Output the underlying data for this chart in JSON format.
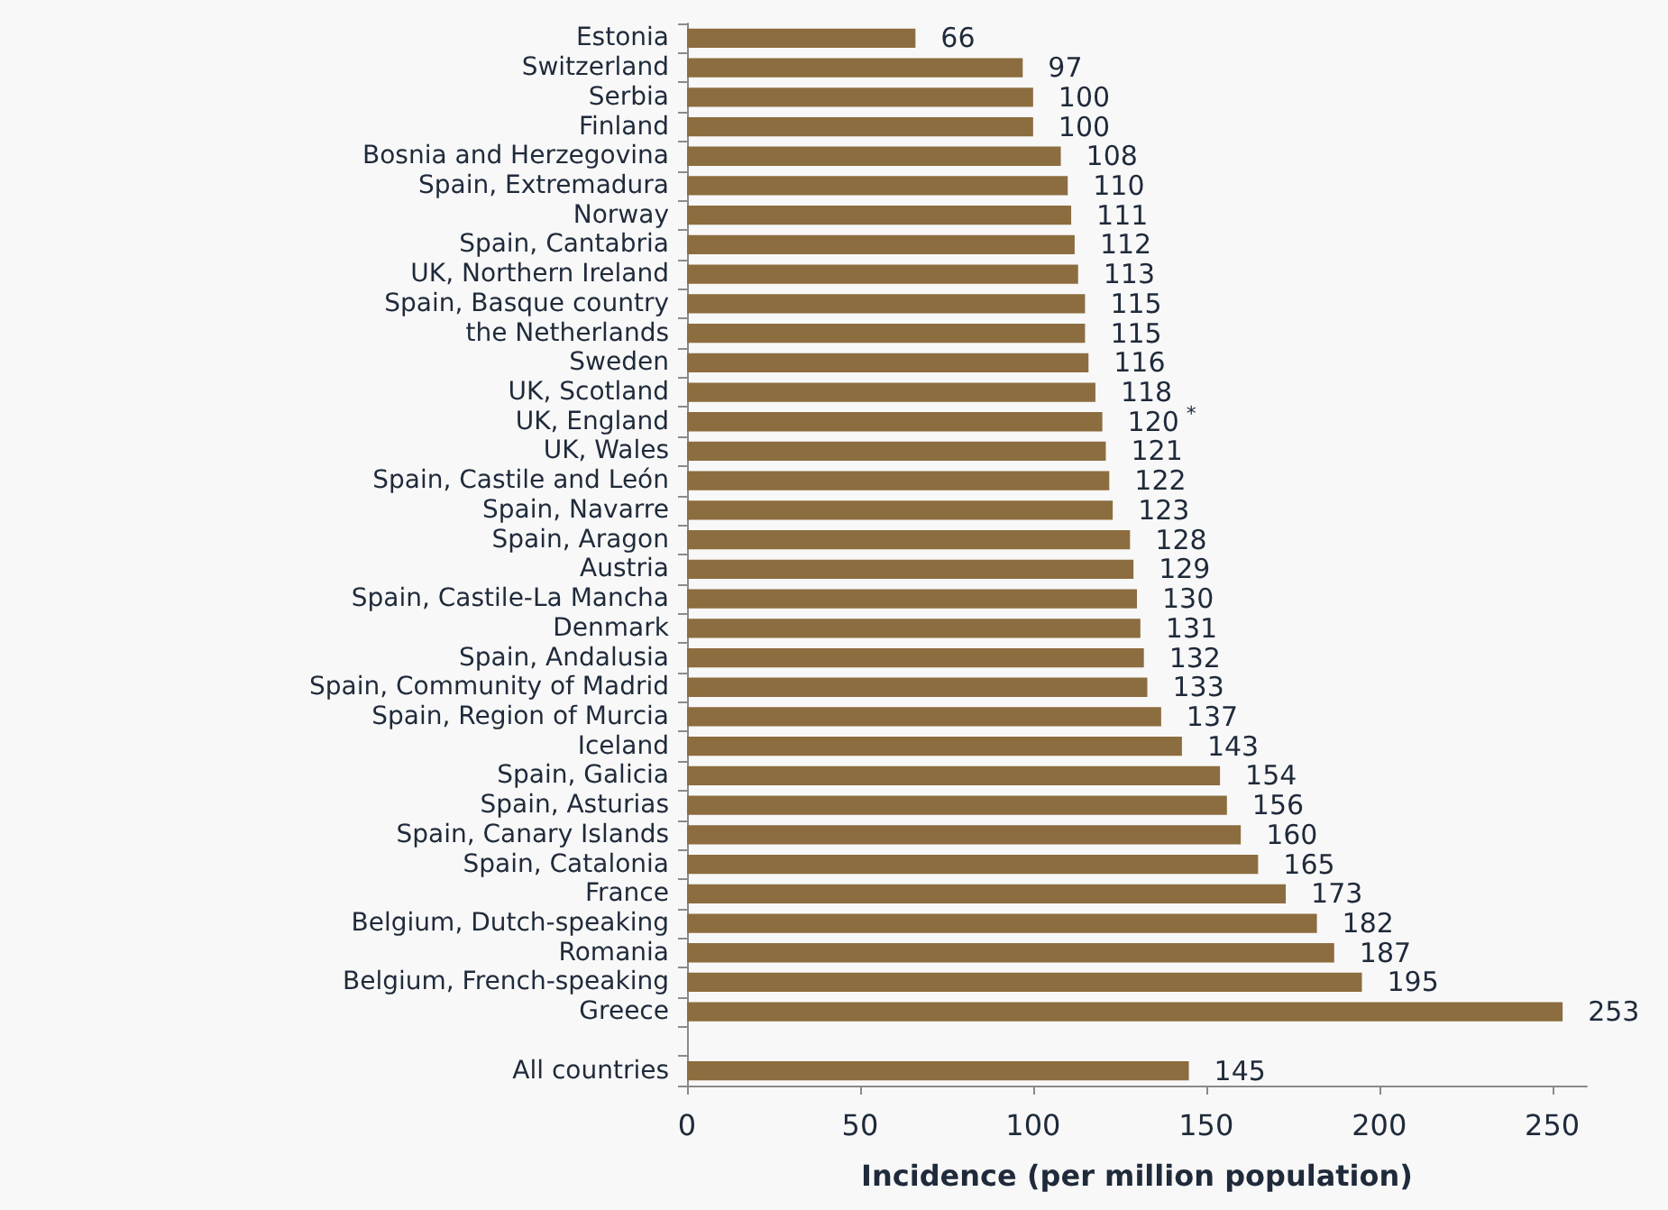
{
  "chart_data": {
    "type": "bar",
    "orientation": "horizontal",
    "xlabel": "Incidence (per million population)",
    "categories": [
      "Estonia",
      "Switzerland",
      "Serbia",
      "Finland",
      "Bosnia and Herzegovina",
      "Spain, Extremadura",
      "Norway",
      "Spain, Cantabria",
      "UK, Northern Ireland",
      "Spain, Basque country",
      "the Netherlands",
      "Sweden",
      "UK, Scotland",
      "UK, England",
      "UK, Wales",
      "Spain, Castile and León",
      "Spain, Navarre",
      "Spain, Aragon",
      "Austria",
      "Spain, Castile-La Mancha",
      "Denmark",
      "Spain, Andalusia",
      "Spain, Community of Madrid",
      "Spain, Region of Murcia",
      "Iceland",
      "Spain, Galicia",
      "Spain, Asturias",
      "Spain, Canary Islands",
      "Spain, Catalonia",
      "France",
      "Belgium, Dutch-speaking",
      "Romania",
      "Belgium, French-speaking",
      "Greece",
      null,
      "All countries"
    ],
    "values": [
      66,
      97,
      100,
      100,
      108,
      110,
      111,
      112,
      113,
      115,
      115,
      116,
      118,
      120,
      121,
      122,
      123,
      128,
      129,
      130,
      131,
      132,
      133,
      137,
      143,
      154,
      156,
      160,
      165,
      173,
      182,
      187,
      195,
      253,
      null,
      145
    ],
    "value_labels": [
      "66",
      "97",
      "100",
      "100",
      "108",
      "110",
      "111",
      "112",
      "113",
      "115",
      "115",
      "116",
      "118",
      "120$^{*}$",
      "121",
      "122",
      "123",
      "128",
      "129",
      "130",
      "131",
      "132",
      "133",
      "137",
      "143",
      "154",
      "156",
      "160",
      "165",
      "173",
      "182",
      "187",
      "195",
      "253",
      null,
      "145"
    ],
    "color": "#8c6d3f",
    "xlim": [
      0,
      260
    ],
    "xticks": [
      0,
      50,
      100,
      150,
      200,
      250
    ]
  }
}
